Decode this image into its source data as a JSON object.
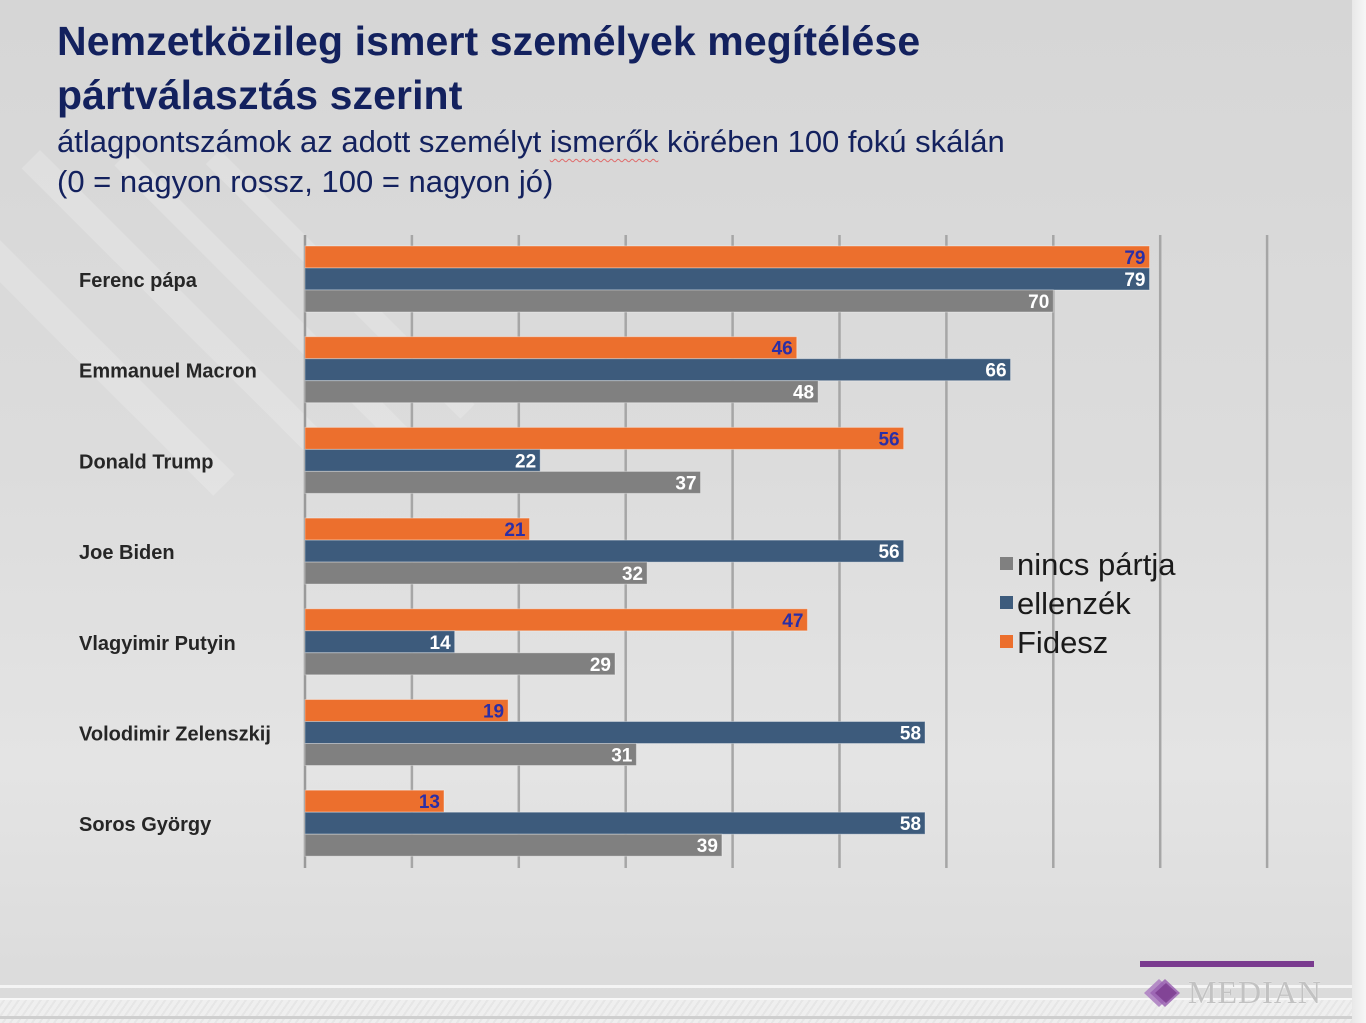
{
  "slide": {
    "title_line1": "Nemzetközileg ismert személyek megítélése",
    "title_line2": "pártválasztás szerint",
    "subtitle_line1_a": "átlagpontszámok az adott személyt ",
    "subtitle_line1_b": "ismerők",
    "subtitle_line1_c": " körében 100 fokú skálán",
    "subtitle_line2": "(0 = nagyon rossz, 100 = nagyon jó)"
  },
  "legend": [
    {
      "name": "nincs pártja",
      "color": "#808080"
    },
    {
      "name": "ellenzék",
      "color": "#3d5b7c"
    },
    {
      "name": "Fidesz",
      "color": "#ec6f2d"
    }
  ],
  "chart_data": {
    "type": "bar",
    "orientation": "horizontal",
    "title": "Nemzetközileg ismert személyek megítélése pártválasztás szerint",
    "subtitle": "átlagpontszámok az adott személyt ismerők körében 100 fokú skálán (0 = nagyon rossz, 100 = nagyon jó)",
    "xlabel": "",
    "ylabel": "",
    "xlim": [
      0,
      90
    ],
    "grid": true,
    "gridline_step": 10,
    "legend_position": "right",
    "categories": [
      "Ferenc pápa",
      "Emmanuel Macron",
      "Donald Trump",
      "Joe Biden",
      "Vlagyimir Putyin",
      "Volodimir Zelenszkij",
      "Soros György"
    ],
    "series": [
      {
        "name": "Fidesz",
        "color": "#ec6f2d",
        "label_color": "#2b2fa6",
        "values": [
          79,
          46,
          56,
          21,
          47,
          19,
          13
        ]
      },
      {
        "name": "ellenzék",
        "color": "#3d5b7c",
        "label_color": "#ffffff",
        "values": [
          79,
          66,
          22,
          56,
          14,
          58,
          58
        ]
      },
      {
        "name": "nincs pártja",
        "color": "#808080",
        "label_color": "#ffffff",
        "values": [
          70,
          48,
          37,
          32,
          29,
          31,
          39
        ]
      }
    ]
  },
  "footer": {
    "brand": "MEDIAN",
    "brand_color": "#7a3b8f"
  }
}
